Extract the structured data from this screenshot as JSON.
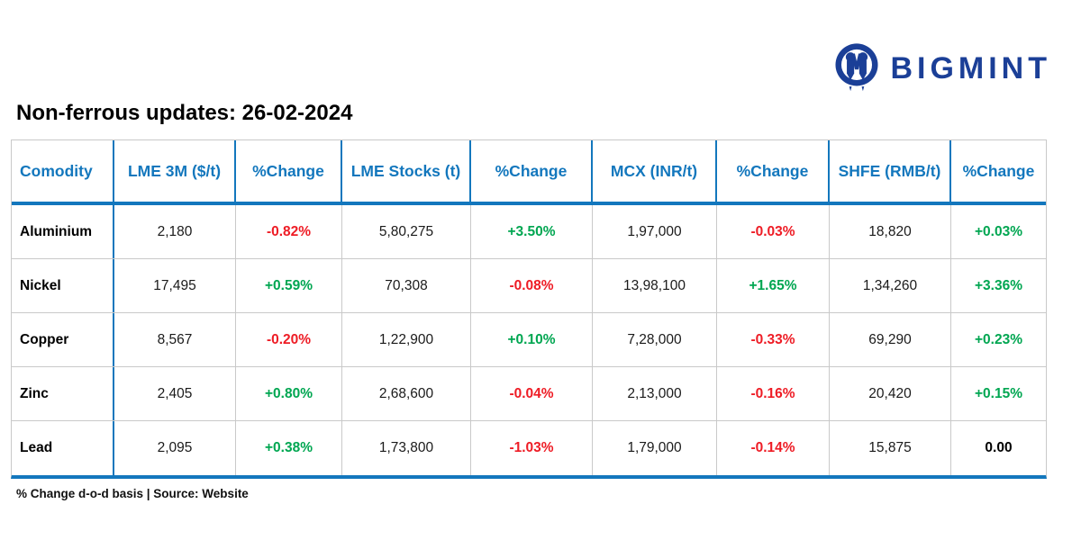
{
  "logo": {
    "brand": "BIGMINT",
    "icon": "bigmint-people-m-icon"
  },
  "colors": {
    "blue": "#1377bd",
    "navy": "#1b3f97",
    "green": "#00a651",
    "red": "#ee1c25"
  },
  "chart_data": {
    "type": "table",
    "title": "Non-ferrous updates: 26-02-2024",
    "footnote": "% Change d-o-d basis | Source: Website",
    "columns": [
      "Comodity",
      "LME 3M ($/t)",
      "%Change",
      "LME Stocks (t)",
      "%Change",
      "MCX (INR/t)",
      "%Change",
      "SHFE (RMB/t)",
      "%Change"
    ],
    "rows": [
      [
        "Aluminium",
        "2,180",
        "-0.82%",
        "5,80,275",
        "+3.50%",
        "1,97,000",
        "-0.03%",
        "18,820",
        "+0.03%"
      ],
      [
        "Nickel",
        "17,495",
        "+0.59%",
        "70,308",
        "-0.08%",
        "13,98,100",
        "+1.65%",
        "1,34,260",
        "+3.36%"
      ],
      [
        "Copper",
        "8,567",
        "-0.20%",
        "1,22,900",
        "+0.10%",
        "7,28,000",
        "-0.33%",
        "69,290",
        "+0.23%"
      ],
      [
        "Zinc",
        "2,405",
        "+0.80%",
        "2,68,600",
        "-0.04%",
        "2,13,000",
        "-0.16%",
        "20,420",
        "+0.15%"
      ],
      [
        "Lead",
        "2,095",
        "+0.38%",
        "1,73,800",
        "-1.03%",
        "1,79,000",
        "-0.14%",
        "15,875",
        "0.00"
      ]
    ]
  }
}
